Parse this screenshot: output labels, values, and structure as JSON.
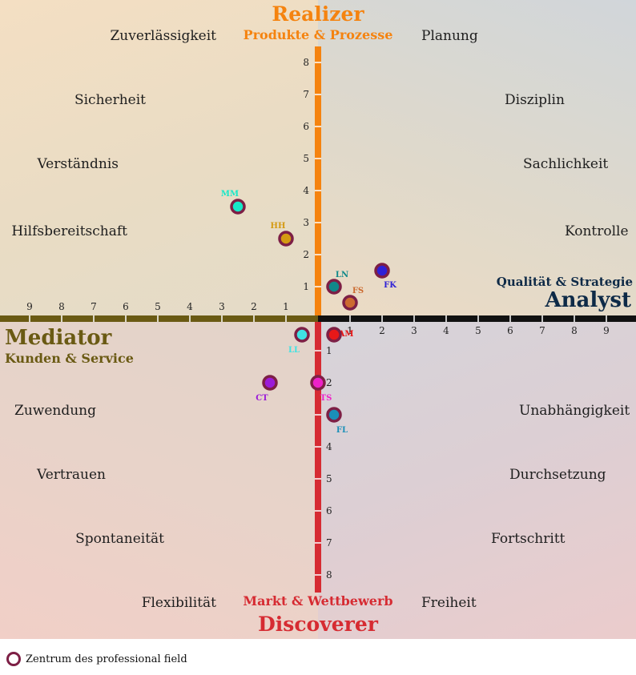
{
  "titles": {
    "realizer": "Realizer",
    "realizer_sub": "Produkte & Prozesse",
    "discoverer": "Discoverer",
    "discoverer_sub": "Markt & Wettbewerb",
    "analyst": "Analyst",
    "analyst_sub": "Qualität & Strategie",
    "mediator": "Mediator",
    "mediator_sub": "Kunden & Service"
  },
  "colors": {
    "realizer": "#f5830f",
    "discoverer": "#d62b32",
    "analyst": "#0e2a47",
    "mediator": "#6a5a13",
    "axis_up": "#f5830f",
    "axis_down": "#d62b32",
    "axis_left": "#6a5a13",
    "axis_right": "#111111",
    "marker_ring": "#7d1f45"
  },
  "quadrant_words": {
    "top_left": [
      "Zuverlässigkeit",
      "Sicherheit",
      "Verständnis",
      "Hilfsbereitschaft"
    ],
    "top_right": [
      "Planung",
      "Disziplin",
      "Sachlichkeit",
      "Kontrolle"
    ],
    "bottom_left": [
      "Zuwendung",
      "Vertrauen",
      "Spontaneität",
      "Flexibilität"
    ],
    "bottom_right": [
      "Unabhängigkeit",
      "Durchsetzung",
      "Fortschritt",
      "Freiheit"
    ]
  },
  "axis_ticks": {
    "up": [
      "1",
      "2",
      "3",
      "4",
      "5",
      "6",
      "7",
      "8"
    ],
    "down": [
      "1",
      "2",
      "3",
      "4",
      "5",
      "6",
      "7",
      "8"
    ],
    "left": [
      "1",
      "2",
      "3",
      "4",
      "5",
      "6",
      "7",
      "8",
      "9"
    ],
    "right": [
      "1",
      "2",
      "3",
      "4",
      "5",
      "6",
      "7",
      "8",
      "9"
    ]
  },
  "chart_data": {
    "type": "scatter",
    "xlim": [
      -9.5,
      9.5
    ],
    "ylim": [
      -8.5,
      8.5
    ],
    "points": [
      {
        "label": "MM",
        "x": -2.5,
        "y": 3.5,
        "color": "#16e8c8"
      },
      {
        "label": "HH",
        "x": -1.0,
        "y": 2.5,
        "color": "#d49a12"
      },
      {
        "label": "LN",
        "x": 0.5,
        "y": 1.0,
        "color": "#10898a"
      },
      {
        "label": "FK",
        "x": 2.0,
        "y": 1.5,
        "color": "#2f20d6"
      },
      {
        "label": "FS",
        "x": 1.0,
        "y": 0.5,
        "color": "#cc6a30"
      },
      {
        "label": "LL",
        "x": -0.5,
        "y": -0.5,
        "color": "#3fe3e3"
      },
      {
        "label": "AM",
        "x": 0.5,
        "y": -0.5,
        "color": "#e81818"
      },
      {
        "label": "CT",
        "x": -1.5,
        "y": -2.0,
        "color": "#9b1bd8"
      },
      {
        "label": "TS",
        "x": 0.0,
        "y": -2.0,
        "color": "#ee22c8"
      },
      {
        "label": "FL",
        "x": 0.5,
        "y": -3.0,
        "color": "#1a8fb8"
      }
    ]
  },
  "legend": {
    "label": "Zentrum des professional field"
  }
}
